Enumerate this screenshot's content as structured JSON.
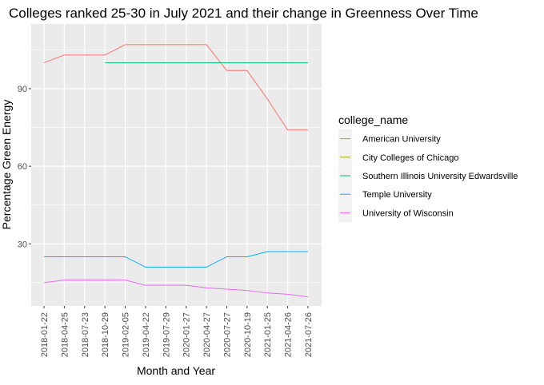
{
  "chart_data": {
    "type": "line",
    "title": "Colleges ranked 25-30 in July 2021 and their change in Greenness Over Time",
    "xlabel": "Month and Year",
    "ylabel": "Percentage Green Energy",
    "x": [
      "2018-01-22",
      "2018-04-25",
      "2018-07-23",
      "2018-10-29",
      "2019-02-05",
      "2019-04-22",
      "2019-07-29",
      "2020-01-27",
      "2020-04-27",
      "2020-07-27",
      "2020-10-19",
      "2021-01-25",
      "2021-04-26",
      "2021-07-26"
    ],
    "y_ticks": [
      30,
      60,
      90
    ],
    "ylim": [
      6,
      115
    ],
    "grid": true,
    "legend": {
      "title": "college_name",
      "placement": "right"
    },
    "series": [
      {
        "name": "American University",
        "color": "#F8766D",
        "values": [
          100,
          103,
          103,
          103,
          107,
          107,
          107,
          107,
          107,
          97,
          97,
          86,
          74,
          74
        ]
      },
      {
        "name": "City Colleges of Chicago",
        "color": "#A3A500",
        "values": [
          null,
          null,
          null,
          null,
          null,
          null,
          null,
          null,
          null,
          null,
          null,
          null,
          null,
          null
        ]
      },
      {
        "name": "Southern Illinois University Edwardsville",
        "color": "#00BF7D",
        "values": [
          null,
          null,
          null,
          100,
          100,
          100,
          100,
          100,
          100,
          100,
          100,
          100,
          100,
          100
        ]
      },
      {
        "name": "Temple University",
        "color": "#00B0F6",
        "values": [
          25,
          25,
          25,
          25,
          25,
          21,
          21,
          21,
          21,
          25,
          25,
          27,
          27,
          27
        ]
      },
      {
        "name": "University of Wisconsin",
        "color": "#E76BF3",
        "values": [
          15,
          16,
          16,
          16,
          16,
          14,
          14,
          14,
          13,
          12.5,
          12,
          11,
          10.5,
          9.5
        ]
      }
    ]
  }
}
